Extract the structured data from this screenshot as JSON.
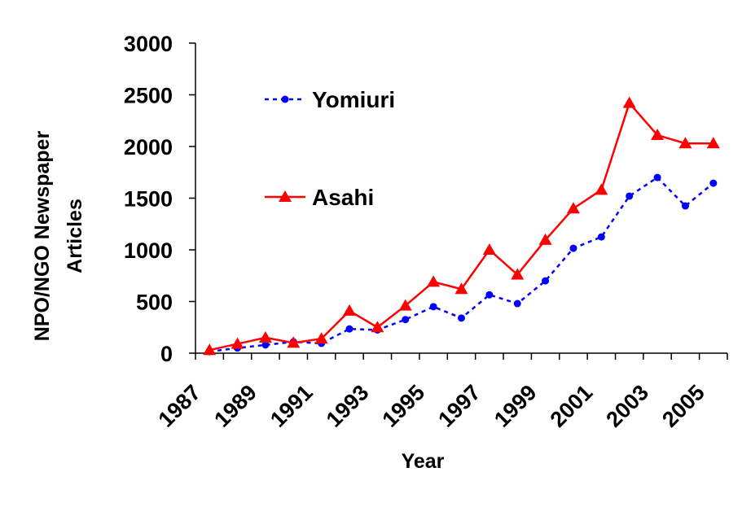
{
  "chart_data": {
    "type": "line",
    "xlabel": "Year",
    "ylabel": [
      "NPO/NGO Newspaper",
      "Articles"
    ],
    "categories": [
      "1987",
      null,
      "1989",
      null,
      "1991",
      null,
      "1993",
      null,
      "1995",
      null,
      "1997",
      null,
      "1999",
      null,
      "2001",
      null,
      "2003",
      null,
      "2005"
    ],
    "series": [
      {
        "name": "Yomiuri",
        "color": "#0000ff",
        "marker": "circle",
        "dash": true,
        "values": [
          15,
          50,
          80,
          110,
          95,
          235,
          225,
          325,
          450,
          340,
          565,
          480,
          700,
          1015,
          1125,
          1520,
          1700,
          1425,
          1645
        ]
      },
      {
        "name": "Asahi",
        "color": "#ff0000",
        "marker": "triangle",
        "dash": false,
        "values": [
          30,
          90,
          150,
          100,
          140,
          410,
          250,
          460,
          690,
          620,
          1000,
          760,
          1095,
          1400,
          1580,
          2420,
          2110,
          2030,
          2030
        ]
      }
    ],
    "ylim": [
      0,
      3000
    ],
    "yticks": [
      0,
      500,
      1000,
      1500,
      2000,
      2500,
      3000
    ],
    "grid": false
  }
}
